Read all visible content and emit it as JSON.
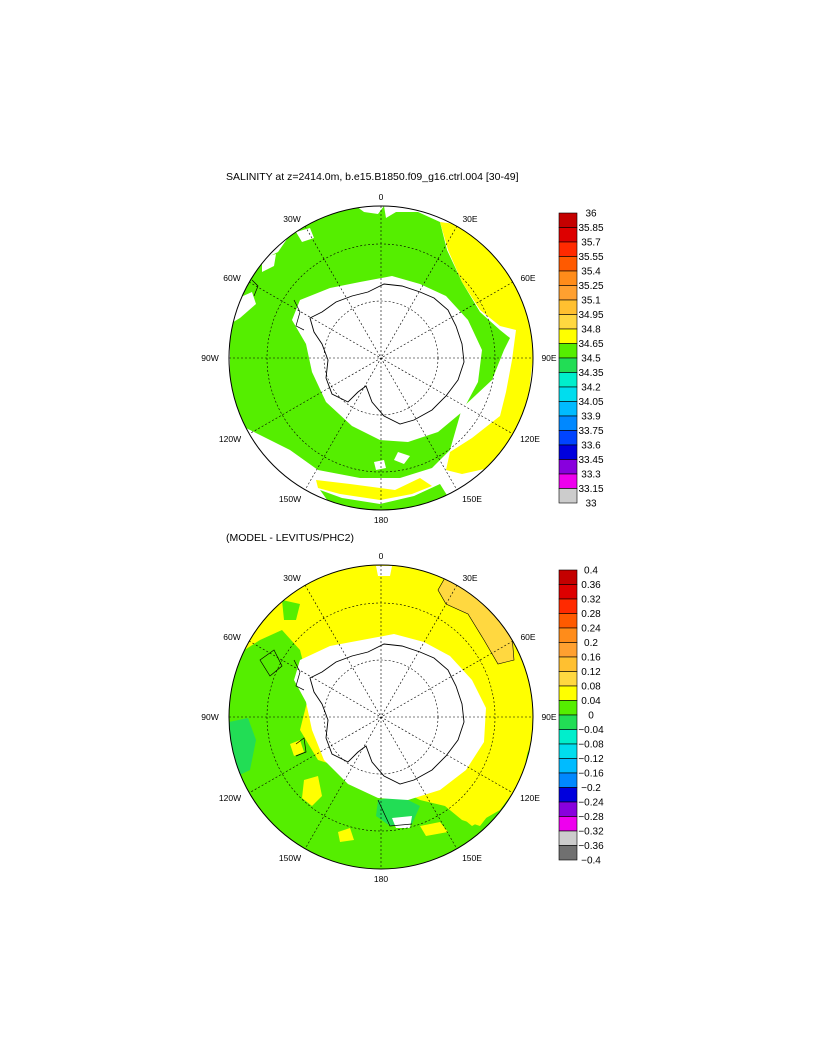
{
  "panels": [
    {
      "title": "SALINITY at z=2414.0m, b.e15.B1850.f09_g16.ctrl.004 [30-49]",
      "lon_labels": [
        "0",
        "30E",
        "60E",
        "90E",
        "120E",
        "150E",
        "180",
        "150W",
        "120W",
        "90W",
        "60W",
        "30W"
      ],
      "colorbar": {
        "labels": [
          "36",
          "35.85",
          "35.7",
          "35.55",
          "35.4",
          "35.25",
          "35.1",
          "34.95",
          "34.8",
          "34.65",
          "34.5",
          "34.35",
          "34.2",
          "34.05",
          "33.9",
          "33.75",
          "33.6",
          "33.45",
          "33.3",
          "33.15",
          "33"
        ],
        "colors": [
          "#c40000",
          "#dd0000",
          "#ff2a00",
          "#ff5a00",
          "#ff8c1a",
          "#ffa030",
          "#ffc030",
          "#ffd840",
          "#ffff00",
          "#55ee00",
          "#22dd55",
          "#00eecc",
          "#00ddee",
          "#00bbff",
          "#0088ff",
          "#0044ff",
          "#0000dd",
          "#8800dd",
          "#ee00ee",
          "#cccccc"
        ]
      }
    },
    {
      "title": "(MODEL - LEVITUS/PHC2)",
      "lon_labels": [
        "0",
        "30E",
        "60E",
        "90E",
        "120E",
        "150E",
        "180",
        "150W",
        "120W",
        "90W",
        "60W",
        "30W"
      ],
      "colorbar": {
        "labels": [
          "0.4",
          "0.36",
          "0.32",
          "0.28",
          "0.24",
          "0.2",
          "0.16",
          "0.12",
          "0.08",
          "0.04",
          "0",
          "−0.04",
          "−0.08",
          "−0.12",
          "−0.16",
          "−0.2",
          "−0.24",
          "−0.28",
          "−0.32",
          "−0.36",
          "−0.4"
        ],
        "colors": [
          "#c40000",
          "#dd0000",
          "#ff2a00",
          "#ff5a00",
          "#ff8c1a",
          "#ffa030",
          "#ffc030",
          "#ffd840",
          "#ffff00",
          "#55ee00",
          "#22dd55",
          "#00eecc",
          "#00ddee",
          "#00bbff",
          "#0088ff",
          "#0000dd",
          "#8800dd",
          "#ee00ee",
          "#cccccc",
          "#707070"
        ]
      }
    }
  ]
}
